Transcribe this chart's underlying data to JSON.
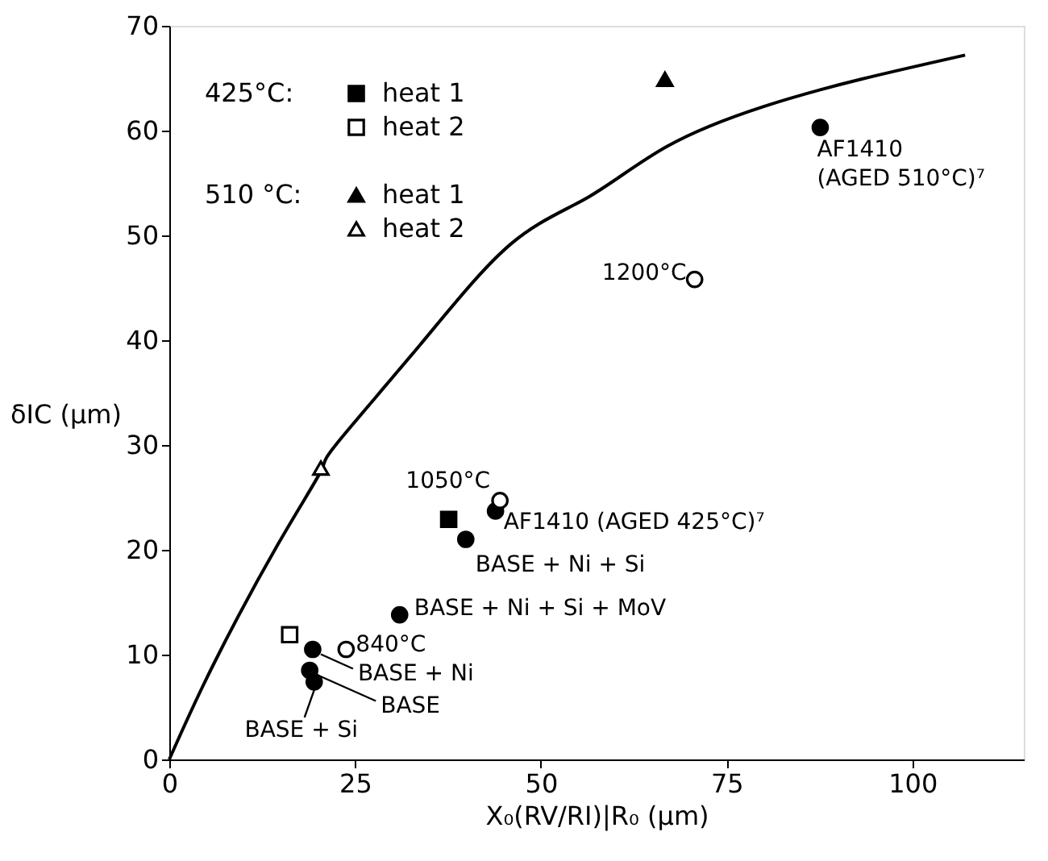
{
  "chart_data": {
    "type": "scatter",
    "xlabel": "X₀(RV/RI)|R₀ (μm)",
    "ylabel": "δIC (μm)",
    "xlim": [
      0,
      115
    ],
    "xticks": [
      0,
      25,
      50,
      75,
      100
    ],
    "ylim": [
      0,
      70
    ],
    "yticks": [
      0,
      10,
      20,
      30,
      40,
      50,
      60,
      70
    ],
    "grid": false,
    "legend": "top left",
    "series": [
      {
        "type": "line",
        "color": "#000000",
        "marker": "none",
        "line_style": "solid",
        "x": [
          0,
          5.9,
          14.6,
          20.4,
          22.5,
          33.8,
          46,
          56.5,
          67,
          80,
          93.1,
          107.1
        ],
        "values": [
          0,
          9.0,
          20.5,
          27.5,
          30.1,
          39.6,
          49.2,
          53.7,
          58.5,
          62.3,
          64.9,
          67.2
        ]
      },
      {
        "name": "heat 1",
        "color": "#000000",
        "marker": "square",
        "x": [
          37.6
        ],
        "values": [
          22.9
        ]
      },
      {
        "name": "heat 2",
        "color": "#ffffff",
        "marker": "square",
        "x": [
          16.2
        ],
        "values": [
          11.9
        ]
      },
      {
        "name": "heat 1",
        "color": "#000000",
        "marker": "triangle",
        "x": [
          66.7
        ],
        "values": [
          64.9
        ]
      },
      {
        "name": "heat 2",
        "color": "#ffffff",
        "marker": "triangle",
        "x": [
          20.4
        ],
        "values": [
          27.8
        ]
      },
      {
        "color": "#000000",
        "marker": "circle",
        "x": [
          87.6,
          43.9,
          39.9,
          31.0,
          19.3,
          18.9,
          19.5
        ],
        "values": [
          60.3,
          23.7,
          21.0,
          13.8,
          10.5,
          8.5,
          7.4
        ]
      },
      {
        "color": "#ffffff",
        "marker": "circle",
        "x": [
          70.7,
          44.5,
          23.8
        ],
        "values": [
          45.8,
          24.7,
          10.5
        ]
      }
    ],
    "annotations": [
      "425°C:",
      "510 °C:",
      {
        "text": "1200°C",
        "x": 70.7,
        "y": 45.8
      },
      {
        "text": "AF1410\n(AGED 510°C)⁷",
        "x": 87.6,
        "y": 60.3
      },
      {
        "text": "1050°C",
        "x": 44.5,
        "y": 24.7
      },
      {
        "text": "AF1410 (AGED 425°C)⁷",
        "x": 43.9,
        "y": 23.7
      },
      {
        "text": "BASE + Ni + Si",
        "x": 39.9,
        "y": 21.0
      },
      {
        "text": "BASE + Ni + Si + MoV",
        "x": 31.0,
        "y": 13.8
      },
      {
        "text": "840°C",
        "x": 23.8,
        "y": 10.5
      },
      {
        "text": "BASE + Ni",
        "x": 19.3,
        "y": 10.5
      },
      {
        "text": "BASE",
        "x": 18.9,
        "y": 8.5
      },
      {
        "text": "BASE + Si",
        "x": 19.5,
        "y": 7.4
      }
    ]
  }
}
